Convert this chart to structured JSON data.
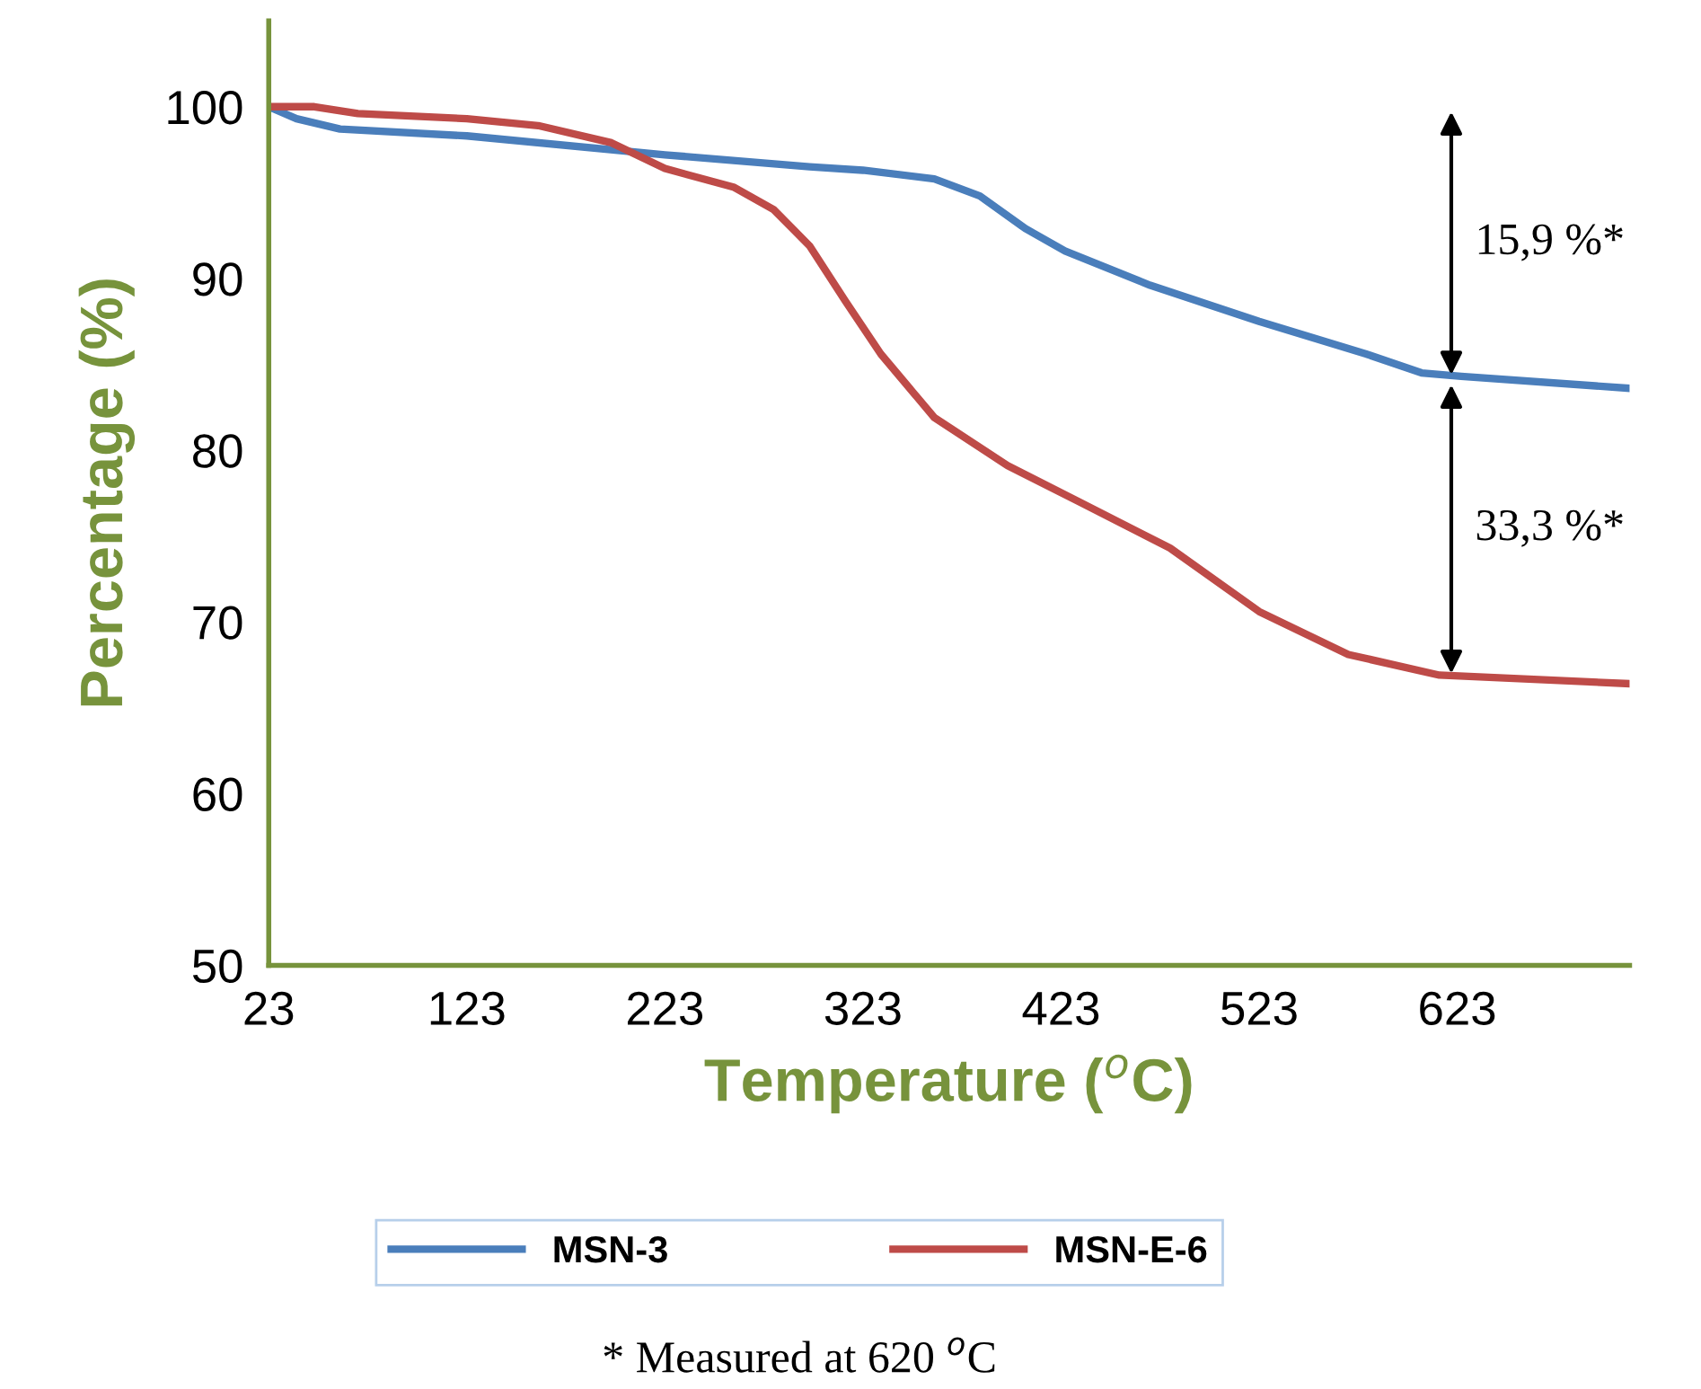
{
  "chart_data": {
    "type": "line",
    "xlabel": "Temperature ($^{o}$C)",
    "ylabel": "Percentage (%)",
    "xlim": [
      23,
      710
    ],
    "xticks": [
      23,
      123,
      223,
      323,
      423,
      523,
      623
    ],
    "ylim": [
      50,
      105
    ],
    "yticks": [
      50,
      60,
      70,
      80,
      90,
      100
    ],
    "grid": false,
    "legend": "bottom",
    "marker": "none",
    "line_style": "solid",
    "series": [
      {
        "name": "MSN-3",
        "color": "#4a7ebb",
        "x": [
          23,
          37,
          59,
          123,
          223,
          296,
          323,
          359,
          382,
          405,
          425,
          468,
          523,
          577,
          605,
          625,
          710
        ],
        "values": [
          100,
          99.3,
          98.7,
          98.3,
          97.2,
          96.5,
          96.3,
          95.8,
          94.8,
          92.9,
          91.6,
          89.6,
          87.5,
          85.6,
          84.5,
          84.3,
          83.6
        ]
      },
      {
        "name": "MSN-E-6",
        "color": "#be4b48",
        "x": [
          23,
          46,
          68,
          123,
          159,
          196,
          223,
          258,
          278,
          296,
          314,
          332,
          359,
          396,
          432,
          478,
          523,
          568,
          614,
          710
        ],
        "values": [
          100,
          100,
          99.6,
          99.3,
          98.9,
          97.9,
          96.4,
          95.3,
          94.0,
          91.9,
          88.7,
          85.6,
          81.9,
          79.1,
          77.0,
          74.3,
          70.6,
          68.1,
          66.9,
          66.4
        ]
      }
    ],
    "annotations": [
      {
        "text": "15,9 %*",
        "x": 620,
        "y": 84.1
      },
      {
        "text": "33,3 %*",
        "x": 620,
        "y": 66.7
      },
      "* Measured at 620 $^{o}$C"
    ]
  }
}
